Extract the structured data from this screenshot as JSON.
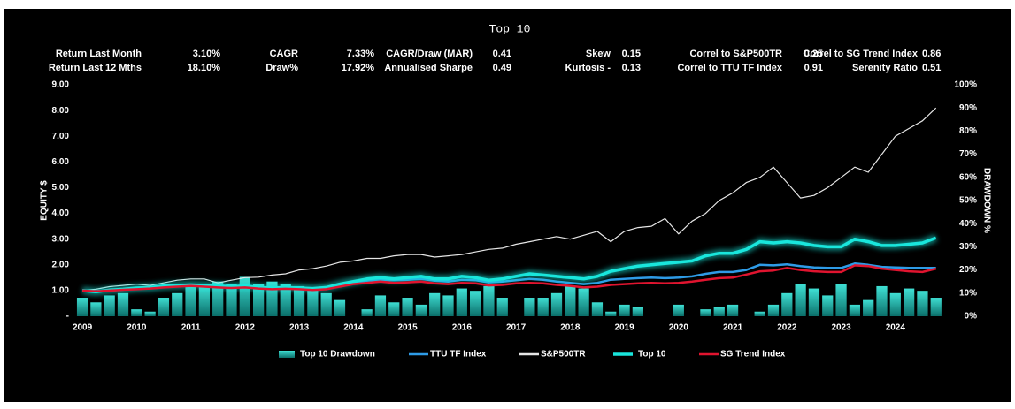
{
  "chart_data": {
    "type": "line",
    "title": "Top 10",
    "stats": [
      [
        {
          "label": "Return Last Month",
          "value": "3.10%"
        },
        {
          "label": "CAGR",
          "value": "7.33%"
        },
        {
          "label": "CAGR/Draw (MAR)",
          "value": "0.41"
        },
        {
          "label": "Skew",
          "value": "0.15"
        },
        {
          "label": "Correl to S&P500TR",
          "value": "0.25"
        },
        {
          "label": "Correl to SG Trend Index",
          "value": "0.86"
        }
      ],
      [
        {
          "label": "Return Last 12 Mths",
          "value": "18.10%"
        },
        {
          "label": "Draw%",
          "value": "17.92%"
        },
        {
          "label": "Annualised Sharpe",
          "value": "0.49"
        },
        {
          "label": "Kurtosis -",
          "value": "0.13"
        },
        {
          "label": "Correl to TTU TF Index",
          "value": "0.91"
        },
        {
          "label": "Serenity Ratio",
          "value": "0.51"
        }
      ]
    ],
    "ylabel": "EQUITY $",
    "y2label": "DRAWDOWN %",
    "x": [
      2009,
      2009.25,
      2009.5,
      2009.75,
      2010,
      2010.25,
      2010.5,
      2010.75,
      2011,
      2011.25,
      2011.5,
      2011.75,
      2012,
      2012.25,
      2012.5,
      2012.75,
      2013,
      2013.25,
      2013.5,
      2013.75,
      2014,
      2014.25,
      2014.5,
      2014.75,
      2015,
      2015.25,
      2015.5,
      2015.75,
      2016,
      2016.25,
      2016.5,
      2016.75,
      2017,
      2017.25,
      2017.5,
      2017.75,
      2018,
      2018.25,
      2018.5,
      2018.75,
      2019,
      2019.25,
      2019.5,
      2019.75,
      2020,
      2020.25,
      2020.5,
      2020.75,
      2021,
      2021.25,
      2021.5,
      2021.75,
      2022,
      2022.25,
      2022.5,
      2022.75,
      2023,
      2023.25,
      2023.5,
      2023.75,
      2024,
      2024.25,
      2024.5,
      2024.75
    ],
    "xlim": [
      2008.95,
      2024.95
    ],
    "xticks": [
      2009,
      2010,
      2011,
      2012,
      2013,
      2014,
      2015,
      2016,
      2017,
      2018,
      2019,
      2020,
      2021,
      2022,
      2023,
      2024
    ],
    "ylim": [
      0,
      9
    ],
    "yticks": [
      {
        "value": 0,
        "label": "-"
      },
      {
        "value": 1,
        "label": "1.00"
      },
      {
        "value": 2,
        "label": "2.00"
      },
      {
        "value": 3,
        "label": "3.00"
      },
      {
        "value": 4,
        "label": "4.00"
      },
      {
        "value": 5,
        "label": "5.00"
      },
      {
        "value": 6,
        "label": "6.00"
      },
      {
        "value": 7,
        "label": "7.00"
      },
      {
        "value": 8,
        "label": "8.00"
      },
      {
        "value": 9,
        "label": "9.00"
      }
    ],
    "y2lim": [
      0,
      100
    ],
    "y2ticks": [
      {
        "value": 0,
        "label": "0%"
      },
      {
        "value": 10,
        "label": "10%"
      },
      {
        "value": 20,
        "label": "20%"
      },
      {
        "value": 30,
        "label": "30%"
      },
      {
        "value": 40,
        "label": "40%"
      },
      {
        "value": 50,
        "label": "50%"
      },
      {
        "value": 60,
        "label": "60%"
      },
      {
        "value": 70,
        "label": "70%"
      },
      {
        "value": 80,
        "label": "80%"
      },
      {
        "value": 90,
        "label": "90%"
      },
      {
        "value": 100,
        "label": "100%"
      }
    ],
    "legend": "bottom",
    "series": [
      {
        "name": "Top 10 Drawdown",
        "type": "bar",
        "axis": "y2",
        "color": "#1fbfb5",
        "values": [
          8,
          6,
          9,
          10,
          3,
          2,
          8,
          10,
          14,
          13,
          15,
          14,
          17,
          14,
          15,
          14,
          13,
          12,
          10,
          7,
          0,
          3,
          9,
          6,
          8,
          5,
          10,
          9,
          12,
          11,
          13,
          8,
          0,
          8,
          8,
          10,
          13,
          12,
          6,
          2,
          5,
          4,
          0,
          0,
          5,
          0,
          3,
          4,
          5,
          0,
          2,
          5,
          10,
          14,
          12,
          9,
          14,
          5,
          7,
          13,
          10,
          12,
          11,
          8
        ]
      },
      {
        "name": "TTU TF Index",
        "type": "line",
        "color": "#2e9be6",
        "values": [
          1.0,
          0.98,
          1.02,
          1.05,
          1.08,
          1.1,
          1.15,
          1.18,
          1.2,
          1.18,
          1.15,
          1.12,
          1.15,
          1.1,
          1.08,
          1.1,
          1.08,
          1.05,
          1.1,
          1.2,
          1.3,
          1.38,
          1.42,
          1.4,
          1.42,
          1.45,
          1.38,
          1.35,
          1.42,
          1.4,
          1.32,
          1.35,
          1.4,
          1.45,
          1.42,
          1.35,
          1.3,
          1.25,
          1.3,
          1.42,
          1.45,
          1.48,
          1.5,
          1.48,
          1.5,
          1.55,
          1.65,
          1.72,
          1.72,
          1.8,
          2.0,
          1.98,
          2.02,
          1.95,
          1.9,
          1.88,
          1.88,
          2.05,
          2.0,
          1.92,
          1.9,
          1.88,
          1.88,
          1.88
        ]
      },
      {
        "name": "S&P500TR",
        "type": "line",
        "color": "#e6e6e6",
        "values": [
          1.0,
          1.05,
          1.15,
          1.2,
          1.25,
          1.2,
          1.3,
          1.4,
          1.45,
          1.45,
          1.3,
          1.4,
          1.5,
          1.52,
          1.6,
          1.65,
          1.8,
          1.85,
          1.95,
          2.1,
          2.15,
          2.25,
          2.25,
          2.35,
          2.4,
          2.4,
          2.3,
          2.35,
          2.4,
          2.5,
          2.6,
          2.65,
          2.8,
          2.9,
          3.0,
          3.1,
          3.0,
          3.15,
          3.3,
          2.9,
          3.3,
          3.45,
          3.5,
          3.8,
          3.2,
          3.7,
          4.0,
          4.5,
          4.8,
          5.2,
          5.4,
          5.8,
          5.2,
          4.6,
          4.7,
          5.0,
          5.4,
          5.8,
          5.6,
          6.3,
          7.0,
          7.3,
          7.6,
          8.1
        ]
      },
      {
        "name": "Top 10",
        "type": "line",
        "glow": true,
        "color": "#19e6dc",
        "values": [
          1.0,
          0.95,
          1.02,
          1.05,
          1.1,
          1.12,
          1.18,
          1.2,
          1.22,
          1.2,
          1.18,
          1.15,
          1.18,
          1.12,
          1.1,
          1.12,
          1.1,
          1.08,
          1.12,
          1.25,
          1.35,
          1.45,
          1.5,
          1.45,
          1.5,
          1.55,
          1.45,
          1.45,
          1.55,
          1.5,
          1.4,
          1.45,
          1.55,
          1.65,
          1.6,
          1.55,
          1.5,
          1.45,
          1.55,
          1.75,
          1.85,
          1.95,
          2.0,
          2.05,
          2.1,
          2.15,
          2.35,
          2.45,
          2.45,
          2.6,
          2.9,
          2.85,
          2.9,
          2.85,
          2.75,
          2.7,
          2.7,
          3.0,
          2.9,
          2.75,
          2.75,
          2.8,
          2.85,
          3.05
        ]
      },
      {
        "name": "SG Trend Index",
        "type": "line",
        "color": "#e0142f",
        "values": [
          1.0,
          0.97,
          1.0,
          1.03,
          1.05,
          1.08,
          1.12,
          1.15,
          1.18,
          1.15,
          1.12,
          1.1,
          1.12,
          1.08,
          1.05,
          1.07,
          1.05,
          1.02,
          1.05,
          1.15,
          1.25,
          1.3,
          1.35,
          1.3,
          1.32,
          1.35,
          1.28,
          1.25,
          1.3,
          1.28,
          1.2,
          1.22,
          1.28,
          1.3,
          1.28,
          1.22,
          1.18,
          1.12,
          1.15,
          1.22,
          1.25,
          1.28,
          1.3,
          1.28,
          1.3,
          1.35,
          1.42,
          1.48,
          1.5,
          1.62,
          1.75,
          1.78,
          1.88,
          1.8,
          1.75,
          1.72,
          1.72,
          1.98,
          1.95,
          1.85,
          1.8,
          1.75,
          1.72,
          1.85
        ]
      }
    ]
  }
}
